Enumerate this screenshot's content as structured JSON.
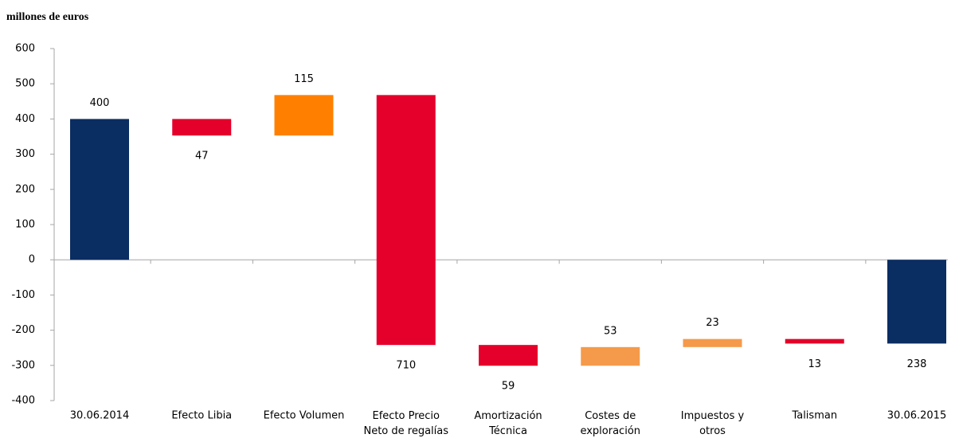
{
  "chart_data": {
    "type": "waterfall",
    "title": "millones de euros",
    "categories": [
      "30.06.2014",
      "Efecto Libia",
      "Efecto Volumen",
      "Efecto Precio\nNeto de regalías",
      "Amortización\nTécnica",
      "Costes de\nexploración",
      "Impuestos y\notros",
      "Talisman",
      "30.06.2015"
    ],
    "values": [
      400,
      -47,
      115,
      -710,
      -59,
      53,
      23,
      -13,
      -238
    ],
    "value_labels": [
      "400",
      "47",
      "115",
      "710",
      "59",
      "53",
      "23",
      "13",
      "238"
    ],
    "measures": [
      "total",
      "relative",
      "relative",
      "relative",
      "relative",
      "relative",
      "relative",
      "relative",
      "total"
    ],
    "colors": [
      "#0a2d62",
      "#e4002b",
      "#ff8000",
      "#e4002b",
      "#e4002b",
      "#f59a4a",
      "#f59a4a",
      "#e4002b",
      "#0a2d62"
    ],
    "ylim": [
      -400,
      600
    ],
    "yticks": [
      -400,
      -300,
      -200,
      -100,
      0,
      100,
      200,
      300,
      400,
      500,
      600
    ]
  }
}
